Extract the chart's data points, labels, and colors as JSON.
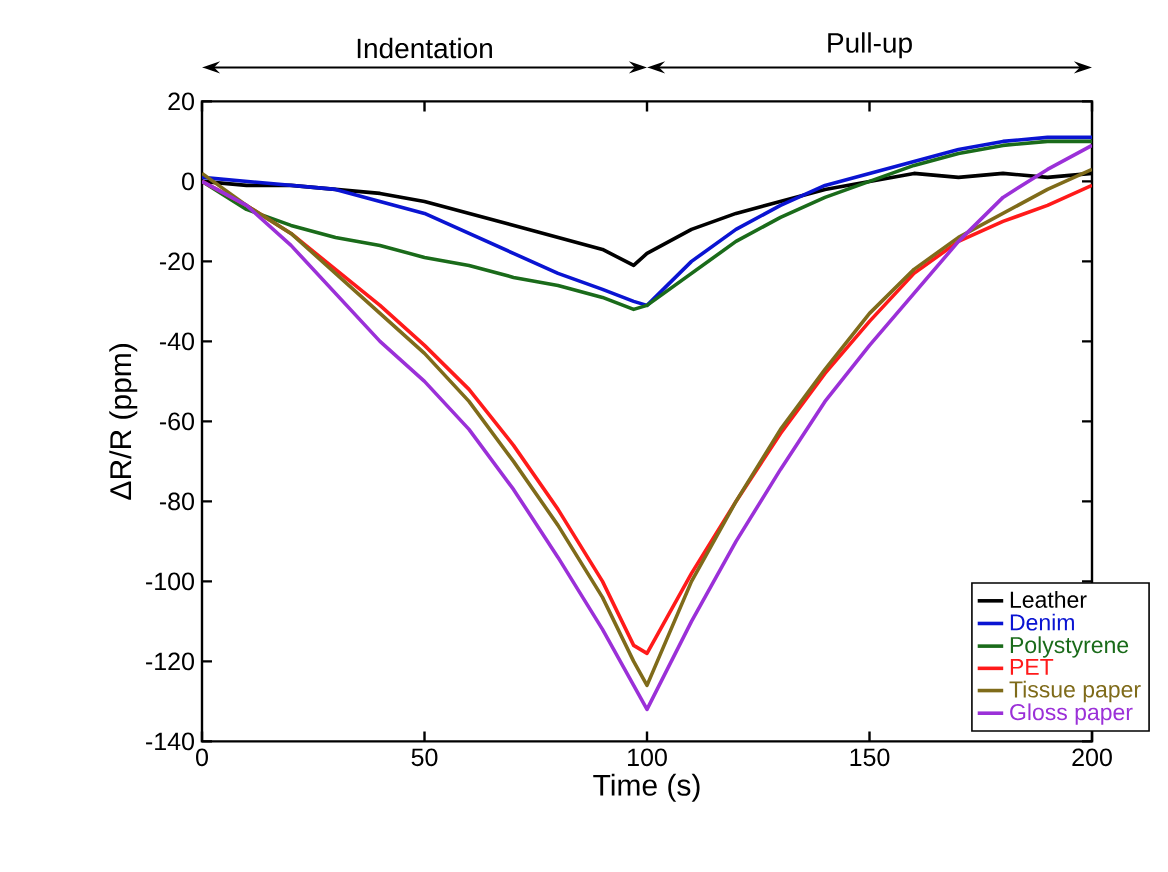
{
  "chart_data": {
    "type": "line",
    "xlabel": "Time (s)",
    "ylabel": "ΔR/R (ppm)",
    "annotations": [
      "Indentation",
      "Pull-up"
    ],
    "x": [
      0,
      10,
      20,
      30,
      40,
      50,
      60,
      70,
      80,
      90,
      97,
      100,
      110,
      120,
      130,
      140,
      150,
      160,
      170,
      180,
      190,
      200
    ],
    "series": [
      {
        "name": "Leather",
        "color": "#000000",
        "values": [
          0,
          -1,
          -1,
          -2,
          -3,
          -5,
          -8,
          -11,
          -14,
          -17,
          -21,
          -18,
          -12,
          -8,
          -5,
          -2,
          0,
          2,
          1,
          2,
          1,
          2
        ]
      },
      {
        "name": "Denim",
        "color": "#0a14d2",
        "values": [
          1,
          0,
          -1,
          -2,
          -5,
          -8,
          -13,
          -18,
          -23,
          -27,
          -30,
          -31,
          -20,
          -12,
          -6,
          -1,
          2,
          5,
          8,
          10,
          11,
          11
        ]
      },
      {
        "name": "Polystyrene",
        "color": "#1a6b1a",
        "values": [
          0,
          -7,
          -11,
          -14,
          -16,
          -19,
          -21,
          -24,
          -26,
          -29,
          -32,
          -31,
          -23,
          -15,
          -9,
          -4,
          0,
          4,
          7,
          9,
          10,
          10
        ]
      },
      {
        "name": "PET",
        "color": "#ff1a1a",
        "values": [
          0,
          -6,
          -13,
          -22,
          -31,
          -41,
          -52,
          -66,
          -82,
          -100,
          -116,
          -118,
          -98,
          -80,
          -63,
          -48,
          -35,
          -23,
          -15,
          -10,
          -6,
          -1
        ]
      },
      {
        "name": "Tissue paper",
        "color": "#7f6b1a",
        "values": [
          2,
          -6,
          -13,
          -23,
          -33,
          -43,
          -55,
          -70,
          -86,
          -104,
          -120,
          -126,
          -100,
          -80,
          -62,
          -47,
          -33,
          -22,
          -14,
          -8,
          -2,
          3
        ]
      },
      {
        "name": "Gloss paper",
        "color": "#9b30d8",
        "values": [
          0,
          -6,
          -16,
          -28,
          -40,
          -50,
          -62,
          -77,
          -94,
          -112,
          -126,
          -132,
          -110,
          -90,
          -72,
          -55,
          -41,
          -28,
          -15,
          -4,
          3,
          9
        ]
      }
    ],
    "xlim": [
      0,
      200
    ],
    "ylim": [
      -140,
      20
    ],
    "xticks": [
      0,
      50,
      100,
      150,
      200
    ],
    "yticks": [
      -140,
      -120,
      -100,
      -80,
      -60,
      -40,
      -20,
      0,
      20
    ],
    "legend": "bottom right",
    "marker": "none",
    "line_style": "solid"
  }
}
